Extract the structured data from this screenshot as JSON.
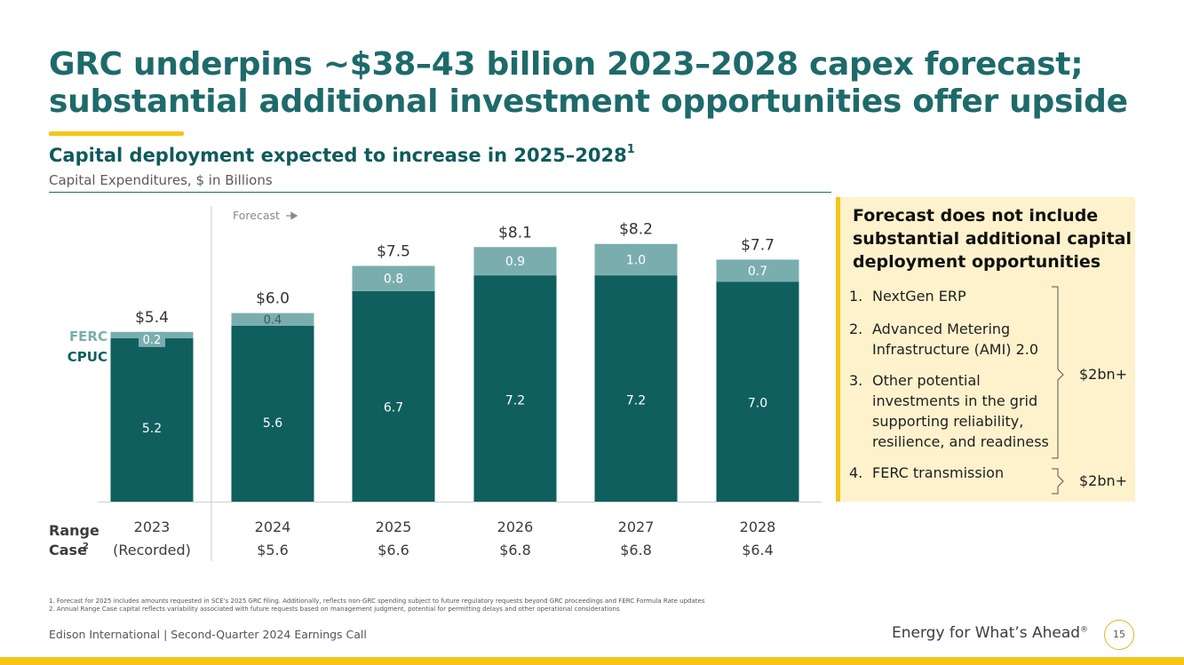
{
  "title_lines": [
    "GRC underpins ~$38–43 billion 2023–2028 capex forecast;",
    "substantial additional investment opportunities offer upside"
  ],
  "subtitle": "Capital deployment expected to increase in 2025–2028",
  "subtitle_sup": "1",
  "caption": "Capital Expenditures, $ in Billions",
  "colors": {
    "cpuc": "#0f5f5e",
    "ferc": "#7aaeae",
    "title": "#1e6a6a",
    "accent": "#f5c518"
  },
  "chart_data": {
    "type": "bar",
    "stacked": true,
    "categories": [
      "2023",
      "2024",
      "2025",
      "2026",
      "2027",
      "2028"
    ],
    "category_sublabels": [
      "(Recorded)",
      "$5.6",
      "$6.6",
      "$6.8",
      "$6.8",
      "$6.4"
    ],
    "series": [
      {
        "name": "CPUC",
        "values": [
          5.2,
          5.6,
          6.7,
          7.2,
          7.2,
          7.0
        ],
        "labels": [
          "5.2",
          "5.6",
          "6.7",
          "7.2",
          "7.2",
          "7.0"
        ]
      },
      {
        "name": "FERC",
        "values": [
          0.2,
          0.4,
          0.8,
          0.9,
          1.0,
          0.7
        ],
        "labels": [
          "0.2",
          "0.4",
          "0.8",
          "0.9",
          "1.0",
          "0.7"
        ]
      }
    ],
    "totals": [
      "$5.4",
      "$6.0",
      "$7.5",
      "$8.1",
      "$8.2",
      "$7.7"
    ],
    "ylim": [
      0,
      8.2
    ],
    "forecast_label": "Forecast",
    "range_case_label": [
      "Range",
      "Case"
    ],
    "range_case_sup": "2"
  },
  "sidebox": {
    "title": "Forecast does not include substantial additional capital deployment opportunities",
    "items": [
      {
        "num": "1.",
        "text": "NextGen ERP"
      },
      {
        "num": "2.",
        "text": "Advanced Metering Infrastructure (AMI) 2.0"
      },
      {
        "num": "3.",
        "text": "Other potential investments in the grid supporting reliability, resilience, and readiness"
      },
      {
        "num": "4.",
        "text": "FERC transmission"
      }
    ],
    "brace_labels": [
      "$2bn+",
      "$2bn+"
    ]
  },
  "footnotes": [
    "1.  Forecast for 2025 includes amounts requested in SCE's 2025 GRC filing. Additionally, reflects non-GRC spending subject to future regulatory requests beyond GRC proceedings and FERC Formula Rate updates",
    "2.  Annual Range Case capital reflects variability associated with future requests based on management judgment, potential for permitting delays and other operational considerations"
  ],
  "footer": {
    "left": "Edison International |  Second-Quarter 2024 Earnings Call",
    "tagline": "Energy for What’s Ahead",
    "tagline_mark": "®",
    "page": "15"
  }
}
